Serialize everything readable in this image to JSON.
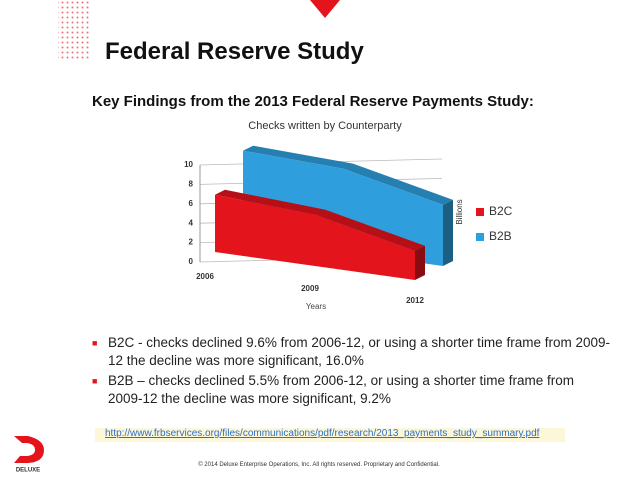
{
  "title": "Federal Reserve Study",
  "subtitle": "Key Findings from the 2013 Federal Reserve Payments Study:",
  "chart_data": {
    "type": "area3d",
    "title": "Checks written by Counterparty",
    "categories": [
      "2006",
      "2009",
      "2012"
    ],
    "series": [
      {
        "name": "B2C",
        "color": "#e3141b",
        "values": [
          5.9,
          5.3,
          3.0
        ]
      },
      {
        "name": "B2B",
        "color": "#2e9fdc",
        "values": [
          9.0,
          8.6,
          6.3
        ]
      }
    ],
    "ylim": [
      0,
      10
    ],
    "yticks": [
      0,
      2,
      4,
      6,
      8,
      10
    ],
    "ylabel": "Billions",
    "xlabel": "Years",
    "grid": true,
    "legend": "right"
  },
  "bullets": [
    "B2C - checks declined 9.6% from 2006-12, or using a shorter time frame from 2009-12 the decline was more significant, 16.0%",
    "B2B – checks declined 5.5% from 2006-12, or using a shorter time frame from 2009-12 the decline was more significant, 9.2%"
  ],
  "link": "http://www.frbservices.org/files/communications/pdf/research/2013_payments_study_summary.pdf",
  "logo": "DELUXE",
  "footer": "© 2014 Deluxe Enterprise Operations, Inc. All rights reserved. Proprietary and Confidential."
}
